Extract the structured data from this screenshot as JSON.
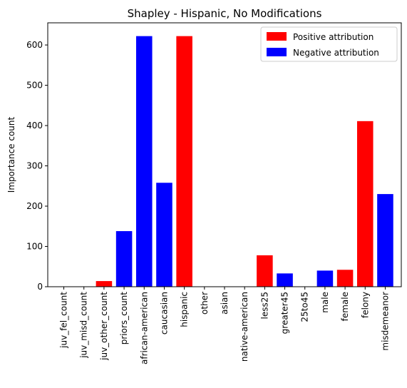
{
  "chart_data": {
    "type": "bar",
    "title": "Shapley - Hispanic, No Modifications",
    "xlabel": "",
    "ylabel": "Importance count",
    "ylim": [
      0,
      655
    ],
    "yticks": [
      0,
      100,
      200,
      300,
      400,
      500,
      600
    ],
    "grid": false,
    "legend_position": "top-right",
    "categories": [
      "juv_fel_count",
      "juv_misd_count",
      "juv_other_count",
      "priors_count",
      "african-american",
      "caucasian",
      "hispanic",
      "other",
      "asian",
      "native-american",
      "less25",
      "greater45",
      "25to45",
      "male",
      "female",
      "felony",
      "misdemeanor"
    ],
    "values": [
      0,
      0,
      14,
      138,
      622,
      258,
      622,
      0,
      0,
      0,
      78,
      33,
      0,
      40,
      42,
      411,
      230
    ],
    "attribution": [
      "none",
      "none",
      "positive",
      "negative",
      "negative",
      "negative",
      "positive",
      "none",
      "none",
      "none",
      "positive",
      "negative",
      "none",
      "negative",
      "positive",
      "positive",
      "negative"
    ],
    "series": [
      {
        "name": "Positive attribution",
        "color": "#ff0000"
      },
      {
        "name": "Negative attribution",
        "color": "#0000ff"
      }
    ]
  }
}
